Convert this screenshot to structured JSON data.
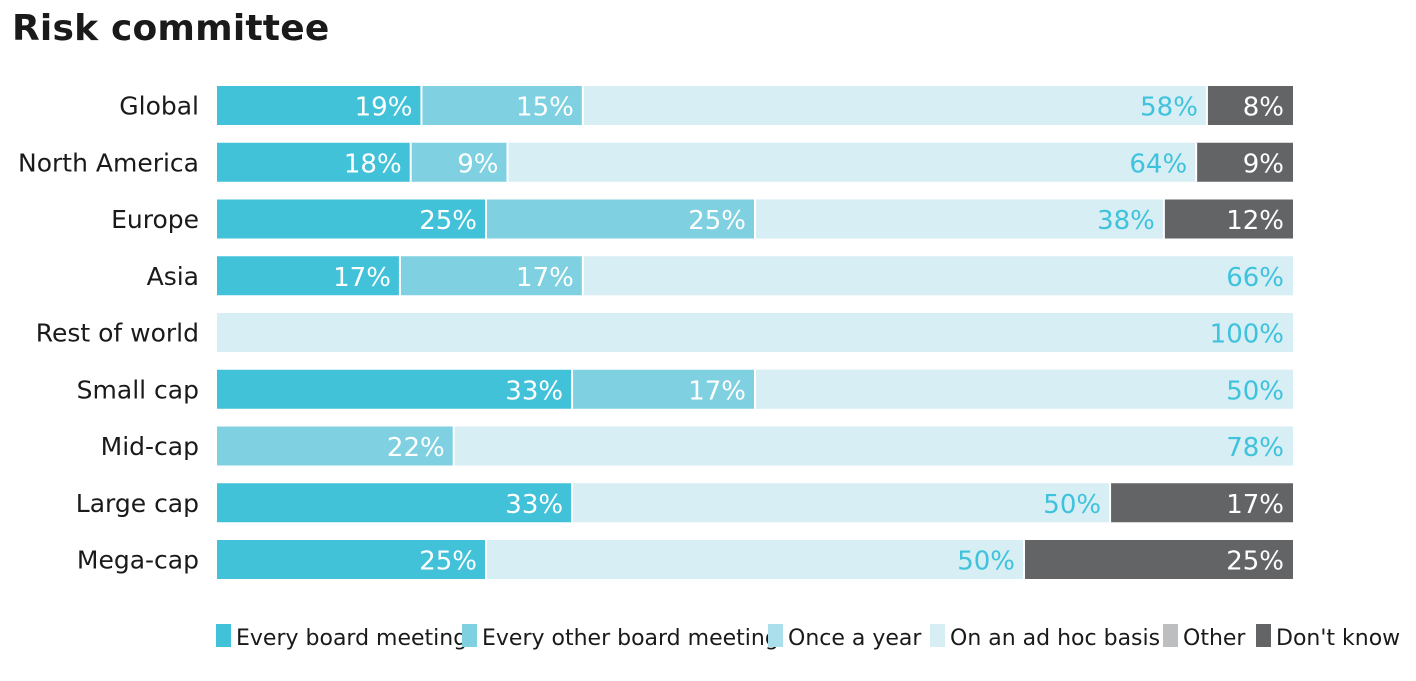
{
  "chart_data": {
    "type": "bar",
    "orientation": "horizontal",
    "stacked": true,
    "normalized": true,
    "title": "Risk committee",
    "categories": [
      "Global",
      "North America",
      "Europe",
      "Asia",
      "Rest of world",
      "Small cap",
      "Mid-cap",
      "Large cap",
      "Mega-cap"
    ],
    "series": [
      {
        "name": "Every board meeting",
        "color": "#42c2d9",
        "label_color": "#ffffff",
        "values": [
          19,
          18,
          25,
          17,
          0,
          33,
          0,
          33,
          25
        ]
      },
      {
        "name": "Every other board meeting",
        "color": "#7fd0e1",
        "label_color": "#ffffff",
        "values": [
          15,
          9,
          25,
          17,
          0,
          17,
          22,
          0,
          0
        ]
      },
      {
        "name": "Once a year",
        "color": "#aadfeb",
        "label_color": "#ffffff",
        "values": [
          0,
          0,
          0,
          0,
          0,
          0,
          0,
          0,
          0
        ]
      },
      {
        "name": "On an ad hoc basis",
        "color": "#d6eef4",
        "label_color": "#3fc2dc",
        "values": [
          58,
          64,
          38,
          66,
          100,
          50,
          78,
          50,
          50
        ]
      },
      {
        "name": "Other",
        "color": "#bcbec0",
        "label_color": "#ffffff",
        "values": [
          0,
          0,
          0,
          0,
          0,
          0,
          0,
          0,
          0
        ]
      },
      {
        "name": "Don't know",
        "color": "#636466",
        "label_color": "#ffffff",
        "values": [
          8,
          9,
          12,
          0,
          0,
          0,
          0,
          17,
          25
        ]
      }
    ],
    "value_suffix": "%",
    "xlim": [
      0,
      100
    ],
    "grid": false,
    "legend_position": "bottom"
  }
}
